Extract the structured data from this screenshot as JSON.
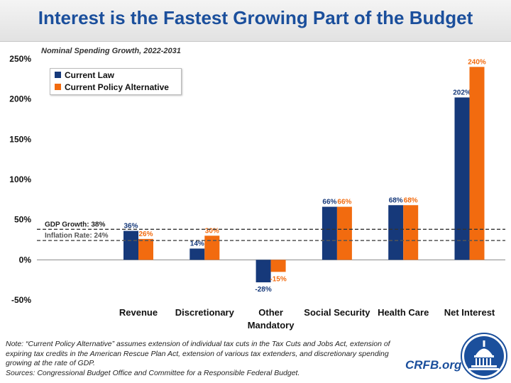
{
  "title": "Interest is the Fastest Growing Part of the Budget",
  "subtitle": "Nominal Spending Growth, 2022-2031",
  "colors": {
    "current_law": "#16397a",
    "current_policy": "#f26b0f",
    "title": "#1b4f9c"
  },
  "chart_data": {
    "type": "bar",
    "categories": [
      "Revenue",
      "Discretionary",
      "Other Mandatory",
      "Social Security",
      "Health Care",
      "Net Interest"
    ],
    "category_lines": [
      [
        "Revenue"
      ],
      [
        "Discretionary"
      ],
      [
        "Other",
        "Mandatory"
      ],
      [
        "Social Security"
      ],
      [
        "Health Care"
      ],
      [
        "Net Interest"
      ]
    ],
    "series": [
      {
        "name": "Current Law",
        "values": [
          36,
          14,
          -28,
          66,
          68,
          202
        ],
        "labels": [
          "36%",
          "14%",
          "-28%",
          "66%",
          "68%",
          "202%"
        ]
      },
      {
        "name": "Current Policy Alternative",
        "values": [
          26,
          30,
          -15,
          66,
          68,
          240
        ],
        "labels": [
          "26%",
          "30%",
          "-15%",
          "66%",
          "68%",
          "240%"
        ]
      }
    ],
    "yticks": [
      -50,
      0,
      50,
      100,
      150,
      200,
      250
    ],
    "ytick_labels": [
      "-50%",
      "0%",
      "50%",
      "100%",
      "150%",
      "200%",
      "250%"
    ],
    "ylim": [
      -50,
      250
    ],
    "reference_lines": [
      {
        "label": "GDP Growth: 38%",
        "value": 38
      },
      {
        "label": "Inflation Rate: 24%",
        "value": 24
      }
    ],
    "legend_position": "top-left"
  },
  "footnote": {
    "note": "Note: “Current Policy Alternative” assumes extension of individual tax cuts in the Tax Cuts and Jobs Act, extension of expiring tax credits in the American Rescue Plan Act, extension of various tax extenders, and discretionary spending growing at the rate of GDP.",
    "sources": "Sources: Congressional Budget Office and Committee for a Responsible Federal Budget."
  },
  "brand": "CRFB.org",
  "logo_icon": "capitol-dome-icon"
}
